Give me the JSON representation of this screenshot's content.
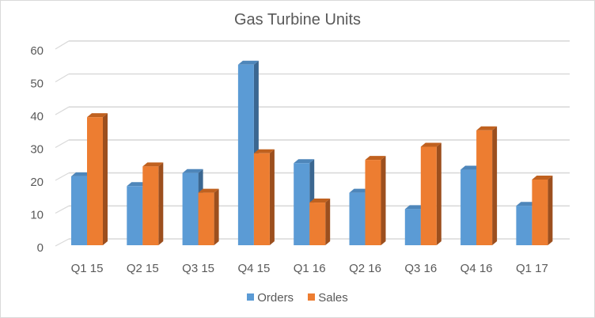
{
  "chart_data": {
    "type": "bar",
    "variant": "3d-clustered-column",
    "title": "Gas Turbine Units",
    "xlabel": "",
    "ylabel": "",
    "categories": [
      "Q1 15",
      "Q2 15",
      "Q3 15",
      "Q4 15",
      "Q1 16",
      "Q2 16",
      "Q3 16",
      "Q4 16",
      "Q1 17"
    ],
    "series": [
      {
        "name": "Orders",
        "values": [
          21,
          18,
          22,
          55,
          25,
          16,
          11,
          23,
          12
        ],
        "color": "#5B9BD5"
      },
      {
        "name": "Sales",
        "values": [
          39,
          24,
          16,
          28,
          13,
          26,
          30,
          35,
          20
        ],
        "color": "#ED7D31"
      }
    ],
    "ylim": [
      0,
      60
    ],
    "yticks": [
      0,
      10,
      20,
      30,
      40,
      50,
      60
    ],
    "grid": true,
    "legend_position": "bottom"
  },
  "legend": {
    "items": [
      {
        "label": "Orders",
        "color": "#5B9BD5"
      },
      {
        "label": "Sales",
        "color": "#ED7D31"
      }
    ]
  },
  "colors": {
    "orders_front": "#5B9BD5",
    "orders_top": "#4E86BA",
    "orders_side": "#3B6791",
    "sales_front": "#ED7D31",
    "sales_top": "#C0611F",
    "sales_side": "#9C4F1E",
    "gridline": "#D9D9D9",
    "text": "#595959"
  }
}
